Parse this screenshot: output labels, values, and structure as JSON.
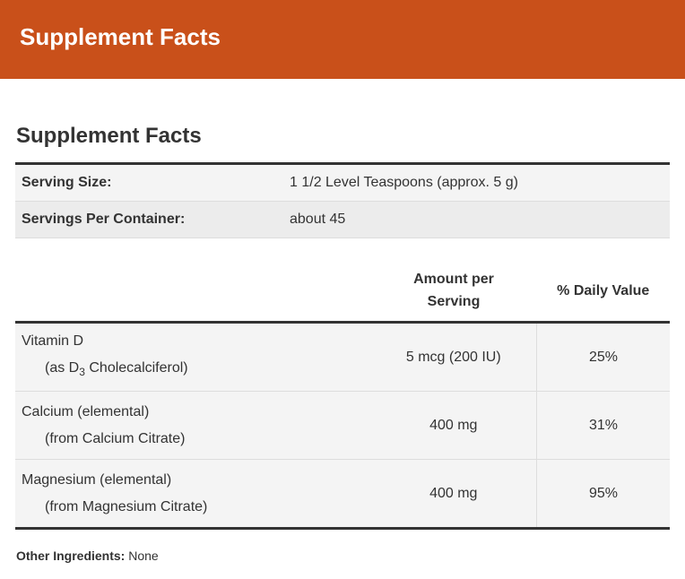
{
  "header": {
    "title": "Supplement Facts"
  },
  "section": {
    "heading": "Supplement Facts"
  },
  "serving_table": {
    "rows": [
      [
        "Serving Size:",
        "1 1/2 Level Teaspoons (approx. 5 g)"
      ],
      [
        "Servings Per Container:",
        "about 45"
      ]
    ]
  },
  "nutrient_table": {
    "columns": [
      "Amount per Serving",
      "% Daily Value"
    ],
    "rows": [
      {
        "name": "Vitamin D",
        "detail": [
          "(as D",
          "3",
          " Cholecalciferol)"
        ],
        "amount": "5 mcg (200 IU)",
        "daily_value": "25%"
      },
      {
        "name": "Calcium (elemental)",
        "detail": [
          "(from Calcium Citrate)"
        ],
        "amount": "400 mg",
        "daily_value": "31%"
      },
      {
        "name": "Magnesium (elemental)",
        "detail": [
          "(from Magnesium Citrate)"
        ],
        "amount": "400 mg",
        "daily_value": "95%"
      }
    ]
  },
  "footer": {
    "label": "Other Ingredients:",
    "text": "None"
  }
}
